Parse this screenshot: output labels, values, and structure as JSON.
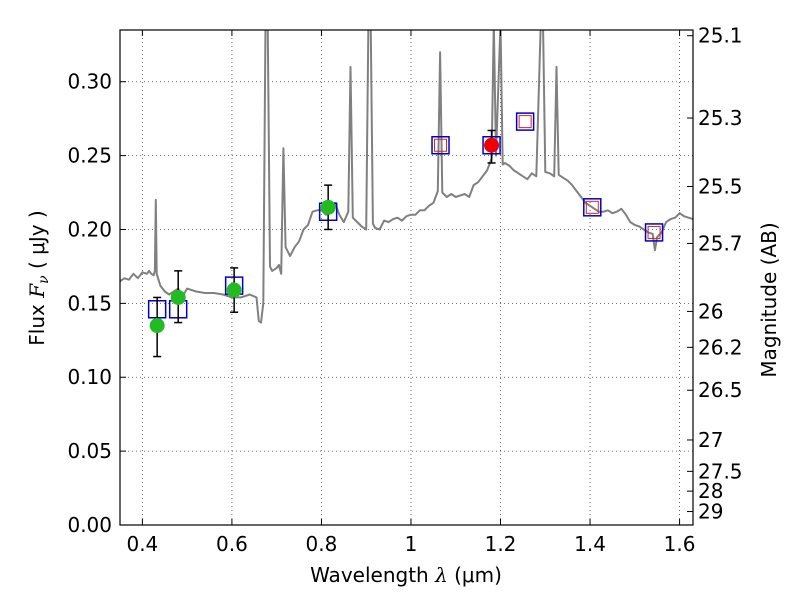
{
  "chart_data": {
    "type": "scatter",
    "xlabel": "Wavelength  λ (μm)",
    "ylabel": "Flux  F_ν  ( μJy )",
    "ylabel_parts": {
      "pre": "Flux  ",
      "sym": "F",
      "sub": "ν",
      "post": "  ( μJy )"
    },
    "xlabel_parts": {
      "pre": "Wavelength  ",
      "sym": "λ",
      "post": " (μm)"
    },
    "y2label": "Magnitude (AB)",
    "xlim": [
      0.35,
      1.63
    ],
    "ylim": [
      0.0,
      0.335
    ],
    "grid": true,
    "x_ticks": [
      0.4,
      0.6,
      0.8,
      1.0,
      1.2,
      1.4,
      1.6
    ],
    "x_tick_labels": [
      "0.4",
      "0.6",
      "0.8",
      "1",
      "1.2",
      "1.4",
      "1.6"
    ],
    "y_ticks": [
      0.0,
      0.05,
      0.1,
      0.15,
      0.2,
      0.25,
      0.3
    ],
    "y_tick_labels": [
      "0.00",
      "0.05",
      "0.10",
      "0.15",
      "0.20",
      "0.25",
      "0.30"
    ],
    "y2_ticks": [
      {
        "mag": 25.1,
        "label": "25.1"
      },
      {
        "mag": 25.3,
        "label": "25.3"
      },
      {
        "mag": 25.5,
        "label": "25.5"
      },
      {
        "mag": 25.7,
        "label": "25.7"
      },
      {
        "mag": 26.0,
        "label": "26"
      },
      {
        "mag": 26.2,
        "label": "26.2"
      },
      {
        "mag": 26.5,
        "label": "26.5"
      },
      {
        "mag": 27.0,
        "label": "27"
      },
      {
        "mag": 27.5,
        "label": "27.5"
      },
      {
        "mag": 28.0,
        "label": "28"
      },
      {
        "mag": 29.0,
        "label": "29"
      }
    ],
    "colors": {
      "model": "#808080",
      "green": "#22bb22",
      "red": "#ee0000",
      "box": "#0000cc",
      "box_inner": "#dd2222",
      "grid": "#444444"
    },
    "model_spectrum": [
      [
        0.35,
        0.165
      ],
      [
        0.36,
        0.167
      ],
      [
        0.37,
        0.166
      ],
      [
        0.38,
        0.17
      ],
      [
        0.39,
        0.167
      ],
      [
        0.4,
        0.171
      ],
      [
        0.41,
        0.17
      ],
      [
        0.415,
        0.172
      ],
      [
        0.42,
        0.17
      ],
      [
        0.425,
        0.169
      ],
      [
        0.428,
        0.172
      ],
      [
        0.43,
        0.22
      ],
      [
        0.432,
        0.17
      ],
      [
        0.44,
        0.162
      ],
      [
        0.45,
        0.158
      ],
      [
        0.46,
        0.156
      ],
      [
        0.47,
        0.158
      ],
      [
        0.48,
        0.16
      ],
      [
        0.49,
        0.155
      ],
      [
        0.5,
        0.16
      ],
      [
        0.52,
        0.158
      ],
      [
        0.54,
        0.157
      ],
      [
        0.56,
        0.157
      ],
      [
        0.58,
        0.156
      ],
      [
        0.6,
        0.154
      ],
      [
        0.62,
        0.154
      ],
      [
        0.64,
        0.156
      ],
      [
        0.655,
        0.154
      ],
      [
        0.66,
        0.138
      ],
      [
        0.665,
        0.137
      ],
      [
        0.67,
        0.15
      ],
      [
        0.675,
        0.34
      ],
      [
        0.68,
        0.34
      ],
      [
        0.685,
        0.175
      ],
      [
        0.69,
        0.172
      ],
      [
        0.7,
        0.174
      ],
      [
        0.705,
        0.176
      ],
      [
        0.71,
        0.17
      ],
      [
        0.715,
        0.255
      ],
      [
        0.72,
        0.188
      ],
      [
        0.73,
        0.182
      ],
      [
        0.74,
        0.188
      ],
      [
        0.75,
        0.192
      ],
      [
        0.76,
        0.2
      ],
      [
        0.77,
        0.203
      ],
      [
        0.78,
        0.212
      ],
      [
        0.79,
        0.213
      ],
      [
        0.8,
        0.213
      ],
      [
        0.81,
        0.21
      ],
      [
        0.82,
        0.211
      ],
      [
        0.83,
        0.218
      ],
      [
        0.84,
        0.21
      ],
      [
        0.85,
        0.205
      ],
      [
        0.86,
        0.212
      ],
      [
        0.865,
        0.31
      ],
      [
        0.87,
        0.208
      ],
      [
        0.88,
        0.205
      ],
      [
        0.89,
        0.202
      ],
      [
        0.9,
        0.2
      ],
      [
        0.905,
        0.34
      ],
      [
        0.91,
        0.34
      ],
      [
        0.915,
        0.204
      ],
      [
        0.92,
        0.201
      ],
      [
        0.93,
        0.2
      ],
      [
        0.94,
        0.206
      ],
      [
        0.95,
        0.205
      ],
      [
        0.96,
        0.207
      ],
      [
        0.97,
        0.208
      ],
      [
        0.98,
        0.206
      ],
      [
        0.99,
        0.209
      ],
      [
        1.0,
        0.21
      ],
      [
        1.01,
        0.21
      ],
      [
        1.02,
        0.213
      ],
      [
        1.03,
        0.213
      ],
      [
        1.04,
        0.216
      ],
      [
        1.05,
        0.218
      ],
      [
        1.06,
        0.226
      ],
      [
        1.065,
        0.32
      ],
      [
        1.07,
        0.225
      ],
      [
        1.08,
        0.222
      ],
      [
        1.09,
        0.224
      ],
      [
        1.1,
        0.222
      ],
      [
        1.11,
        0.223
      ],
      [
        1.12,
        0.224
      ],
      [
        1.13,
        0.222
      ],
      [
        1.14,
        0.23
      ],
      [
        1.15,
        0.232
      ],
      [
        1.16,
        0.236
      ],
      [
        1.17,
        0.24
      ],
      [
        1.18,
        0.248
      ],
      [
        1.185,
        0.34
      ],
      [
        1.19,
        0.25
      ],
      [
        1.2,
        0.34
      ],
      [
        1.205,
        0.244
      ],
      [
        1.21,
        0.245
      ],
      [
        1.22,
        0.243
      ],
      [
        1.23,
        0.24
      ],
      [
        1.24,
        0.238
      ],
      [
        1.25,
        0.236
      ],
      [
        1.26,
        0.234
      ],
      [
        1.27,
        0.238
      ],
      [
        1.28,
        0.236
      ],
      [
        1.29,
        0.34
      ],
      [
        1.295,
        0.34
      ],
      [
        1.3,
        0.239
      ],
      [
        1.31,
        0.238
      ],
      [
        1.32,
        0.236
      ],
      [
        1.325,
        0.31
      ],
      [
        1.33,
        0.237
      ],
      [
        1.34,
        0.235
      ],
      [
        1.35,
        0.233
      ],
      [
        1.36,
        0.23
      ],
      [
        1.37,
        0.226
      ],
      [
        1.38,
        0.222
      ],
      [
        1.39,
        0.218
      ],
      [
        1.4,
        0.216
      ],
      [
        1.41,
        0.214
      ],
      [
        1.42,
        0.212
      ],
      [
        1.43,
        0.212
      ],
      [
        1.44,
        0.213
      ],
      [
        1.45,
        0.211
      ],
      [
        1.46,
        0.212
      ],
      [
        1.47,
        0.214
      ],
      [
        1.48,
        0.21
      ],
      [
        1.49,
        0.205
      ],
      [
        1.5,
        0.203
      ],
      [
        1.51,
        0.202
      ],
      [
        1.52,
        0.2
      ],
      [
        1.53,
        0.198
      ],
      [
        1.54,
        0.197
      ],
      [
        1.545,
        0.186
      ],
      [
        1.55,
        0.195
      ],
      [
        1.56,
        0.198
      ],
      [
        1.57,
        0.205
      ],
      [
        1.58,
        0.207
      ],
      [
        1.59,
        0.208
      ],
      [
        1.6,
        0.211
      ],
      [
        1.61,
        0.209
      ],
      [
        1.62,
        0.208
      ],
      [
        1.63,
        0.207
      ]
    ],
    "model_boxes": [
      {
        "x": 0.433,
        "y": 0.146
      },
      {
        "x": 0.48,
        "y": 0.146
      },
      {
        "x": 0.605,
        "y": 0.162
      },
      {
        "x": 0.815,
        "y": 0.212
      },
      {
        "x": 1.066,
        "y": 0.257,
        "inner": true
      },
      {
        "x": 1.18,
        "y": 0.257
      },
      {
        "x": 1.255,
        "y": 0.273,
        "inner": true
      },
      {
        "x": 1.405,
        "y": 0.215,
        "inner": true
      },
      {
        "x": 1.543,
        "y": 0.198,
        "inner": true
      }
    ],
    "observations": [
      {
        "x": 0.433,
        "y": 0.135,
        "err_lo": 0.114,
        "err_hi": 0.154,
        "color": "green"
      },
      {
        "x": 0.48,
        "y": 0.154,
        "err_lo": 0.137,
        "err_hi": 0.172,
        "color": "green"
      },
      {
        "x": 0.605,
        "y": 0.159,
        "err_lo": 0.144,
        "err_hi": 0.174,
        "color": "green"
      },
      {
        "x": 0.815,
        "y": 0.215,
        "err_lo": 0.2,
        "err_hi": 0.23,
        "color": "green"
      },
      {
        "x": 1.18,
        "y": 0.257,
        "err_lo": 0.245,
        "err_hi": 0.267,
        "color": "red"
      }
    ]
  }
}
